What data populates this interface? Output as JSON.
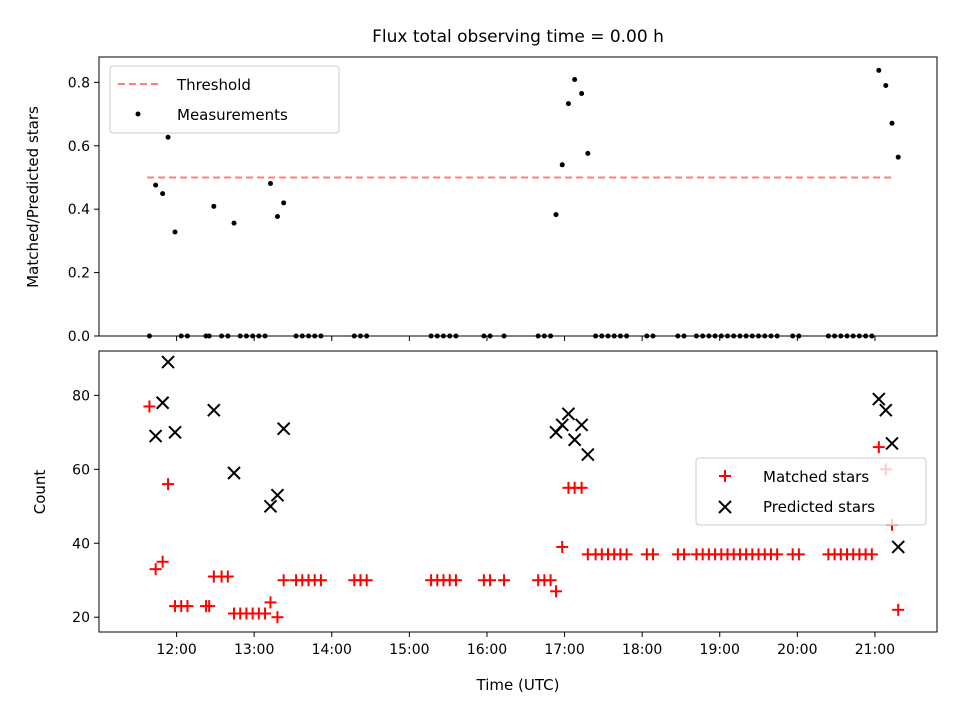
{
  "chart_data": [
    {
      "type": "scatter",
      "title": "Flux total observing time = 0.00 h",
      "ylabel": "Matched/Predicted stars",
      "xlabel": "",
      "ylim": [
        0,
        0.88
      ],
      "yticks": [
        "0.0",
        "0.2",
        "0.4",
        "0.6",
        "0.8"
      ],
      "ytick_values": [
        0.0,
        0.2,
        0.4,
        0.6,
        0.8
      ],
      "legend_position": "top-left",
      "threshold": {
        "name": "Threshold",
        "value": 0.5,
        "x_start": 11.62,
        "x_end": 21.25,
        "color": "#ff7f7f"
      },
      "series": [
        {
          "name": "Measurements",
          "marker": "dot",
          "color": "#000000",
          "points": [
            [
              11.65,
              0
            ],
            [
              11.73,
              0.476
            ],
            [
              11.82,
              0.449
            ],
            [
              11.89,
              0.627
            ],
            [
              11.98,
              0.328
            ],
            [
              12.06,
              0
            ],
            [
              12.14,
              0
            ],
            [
              12.38,
              0
            ],
            [
              12.42,
              0
            ],
            [
              12.48,
              0.409
            ],
            [
              12.58,
              0
            ],
            [
              12.66,
              0
            ],
            [
              12.74,
              0.356
            ],
            [
              12.82,
              0
            ],
            [
              12.9,
              0
            ],
            [
              12.98,
              0
            ],
            [
              13.06,
              0
            ],
            [
              13.14,
              0
            ],
            [
              13.21,
              0.481
            ],
            [
              13.3,
              0.377
            ],
            [
              13.38,
              0.42
            ],
            [
              13.54,
              0
            ],
            [
              13.62,
              0
            ],
            [
              13.7,
              0
            ],
            [
              13.78,
              0
            ],
            [
              13.86,
              0
            ],
            [
              14.29,
              0
            ],
            [
              14.37,
              0
            ],
            [
              14.45,
              0
            ],
            [
              15.28,
              0
            ],
            [
              15.36,
              0
            ],
            [
              15.44,
              0
            ],
            [
              15.52,
              0
            ],
            [
              15.6,
              0
            ],
            [
              15.96,
              0
            ],
            [
              16.04,
              0
            ],
            [
              16.22,
              0
            ],
            [
              16.66,
              0
            ],
            [
              16.74,
              0
            ],
            [
              16.82,
              0
            ],
            [
              16.89,
              0.383
            ],
            [
              16.97,
              0.54
            ],
            [
              17.05,
              0.733
            ],
            [
              17.13,
              0.809
            ],
            [
              17.22,
              0.765
            ],
            [
              17.3,
              0.576
            ],
            [
              17.4,
              0
            ],
            [
              17.48,
              0
            ],
            [
              17.56,
              0
            ],
            [
              17.64,
              0
            ],
            [
              17.72,
              0
            ],
            [
              17.8,
              0
            ],
            [
              18.06,
              0
            ],
            [
              18.14,
              0
            ],
            [
              18.46,
              0
            ],
            [
              18.54,
              0
            ],
            [
              18.7,
              0
            ],
            [
              18.78,
              0
            ],
            [
              18.86,
              0
            ],
            [
              18.94,
              0
            ],
            [
              19.02,
              0
            ],
            [
              19.1,
              0
            ],
            [
              19.18,
              0
            ],
            [
              19.26,
              0
            ],
            [
              19.34,
              0
            ],
            [
              19.42,
              0
            ],
            [
              19.5,
              0
            ],
            [
              19.58,
              0
            ],
            [
              19.66,
              0
            ],
            [
              19.74,
              0
            ],
            [
              19.94,
              0
            ],
            [
              20.02,
              0
            ],
            [
              20.4,
              0
            ],
            [
              20.48,
              0
            ],
            [
              20.56,
              0
            ],
            [
              20.64,
              0
            ],
            [
              20.72,
              0
            ],
            [
              20.8,
              0
            ],
            [
              20.88,
              0
            ],
            [
              20.96,
              0
            ],
            [
              21.05,
              0.838
            ],
            [
              21.14,
              0.79
            ],
            [
              21.22,
              0.671
            ],
            [
              21.3,
              0.564
            ]
          ]
        }
      ]
    },
    {
      "type": "scatter",
      "title": "",
      "ylabel": "Count",
      "xlabel": "Time (UTC)",
      "xlim": [
        11.0,
        21.8
      ],
      "ylim": [
        16,
        92
      ],
      "yticks": [
        "20",
        "40",
        "60",
        "80"
      ],
      "ytick_values": [
        20,
        40,
        60,
        80
      ],
      "xticks": [
        "12:00",
        "13:00",
        "14:00",
        "15:00",
        "16:00",
        "17:00",
        "18:00",
        "19:00",
        "20:00",
        "21:00"
      ],
      "xtick_values": [
        12,
        13,
        14,
        15,
        16,
        17,
        18,
        19,
        20,
        21
      ],
      "legend_position": "center-right",
      "series": [
        {
          "name": "Matched stars",
          "marker": "plus",
          "color": "#ff0000",
          "points": [
            [
              11.65,
              77
            ],
            [
              11.73,
              33
            ],
            [
              11.82,
              35
            ],
            [
              11.89,
              56
            ],
            [
              11.98,
              23
            ],
            [
              12.06,
              23
            ],
            [
              12.14,
              23
            ],
            [
              12.38,
              23
            ],
            [
              12.42,
              23
            ],
            [
              12.48,
              31
            ],
            [
              12.58,
              31
            ],
            [
              12.66,
              31
            ],
            [
              12.74,
              21
            ],
            [
              12.82,
              21
            ],
            [
              12.9,
              21
            ],
            [
              12.98,
              21
            ],
            [
              13.06,
              21
            ],
            [
              13.14,
              21
            ],
            [
              13.21,
              24
            ],
            [
              13.3,
              20
            ],
            [
              13.38,
              30
            ],
            [
              13.54,
              30
            ],
            [
              13.62,
              30
            ],
            [
              13.7,
              30
            ],
            [
              13.78,
              30
            ],
            [
              13.86,
              30
            ],
            [
              14.29,
              30
            ],
            [
              14.37,
              30
            ],
            [
              14.45,
              30
            ],
            [
              15.28,
              30
            ],
            [
              15.36,
              30
            ],
            [
              15.44,
              30
            ],
            [
              15.52,
              30
            ],
            [
              15.6,
              30
            ],
            [
              15.96,
              30
            ],
            [
              16.04,
              30
            ],
            [
              16.22,
              30
            ],
            [
              16.66,
              30
            ],
            [
              16.74,
              30
            ],
            [
              16.82,
              30
            ],
            [
              16.89,
              27
            ],
            [
              16.97,
              39
            ],
            [
              17.05,
              55
            ],
            [
              17.13,
              55
            ],
            [
              17.22,
              55
            ],
            [
              17.3,
              37
            ],
            [
              17.4,
              37
            ],
            [
              17.48,
              37
            ],
            [
              17.56,
              37
            ],
            [
              17.64,
              37
            ],
            [
              17.72,
              37
            ],
            [
              17.8,
              37
            ],
            [
              18.06,
              37
            ],
            [
              18.14,
              37
            ],
            [
              18.46,
              37
            ],
            [
              18.54,
              37
            ],
            [
              18.7,
              37
            ],
            [
              18.78,
              37
            ],
            [
              18.86,
              37
            ],
            [
              18.94,
              37
            ],
            [
              19.02,
              37
            ],
            [
              19.1,
              37
            ],
            [
              19.18,
              37
            ],
            [
              19.26,
              37
            ],
            [
              19.34,
              37
            ],
            [
              19.42,
              37
            ],
            [
              19.5,
              37
            ],
            [
              19.58,
              37
            ],
            [
              19.66,
              37
            ],
            [
              19.74,
              37
            ],
            [
              19.94,
              37
            ],
            [
              20.02,
              37
            ],
            [
              20.4,
              37
            ],
            [
              20.48,
              37
            ],
            [
              20.56,
              37
            ],
            [
              20.64,
              37
            ],
            [
              20.72,
              37
            ],
            [
              20.8,
              37
            ],
            [
              20.88,
              37
            ],
            [
              20.96,
              37
            ],
            [
              21.05,
              66
            ],
            [
              21.14,
              60
            ],
            [
              21.22,
              45
            ],
            [
              21.3,
              22
            ]
          ]
        },
        {
          "name": "Predicted stars",
          "marker": "x",
          "color": "#000000",
          "points": [
            [
              11.73,
              69
            ],
            [
              11.82,
              78
            ],
            [
              11.89,
              89
            ],
            [
              11.98,
              70
            ],
            [
              12.48,
              76
            ],
            [
              12.74,
              59
            ],
            [
              13.21,
              50
            ],
            [
              13.3,
              53
            ],
            [
              13.38,
              71
            ],
            [
              16.89,
              70
            ],
            [
              16.97,
              72
            ],
            [
              17.05,
              75
            ],
            [
              17.13,
              68
            ],
            [
              17.22,
              72
            ],
            [
              17.3,
              64
            ],
            [
              21.05,
              79
            ],
            [
              21.14,
              76
            ],
            [
              21.22,
              67
            ],
            [
              21.3,
              39
            ]
          ]
        }
      ]
    }
  ]
}
